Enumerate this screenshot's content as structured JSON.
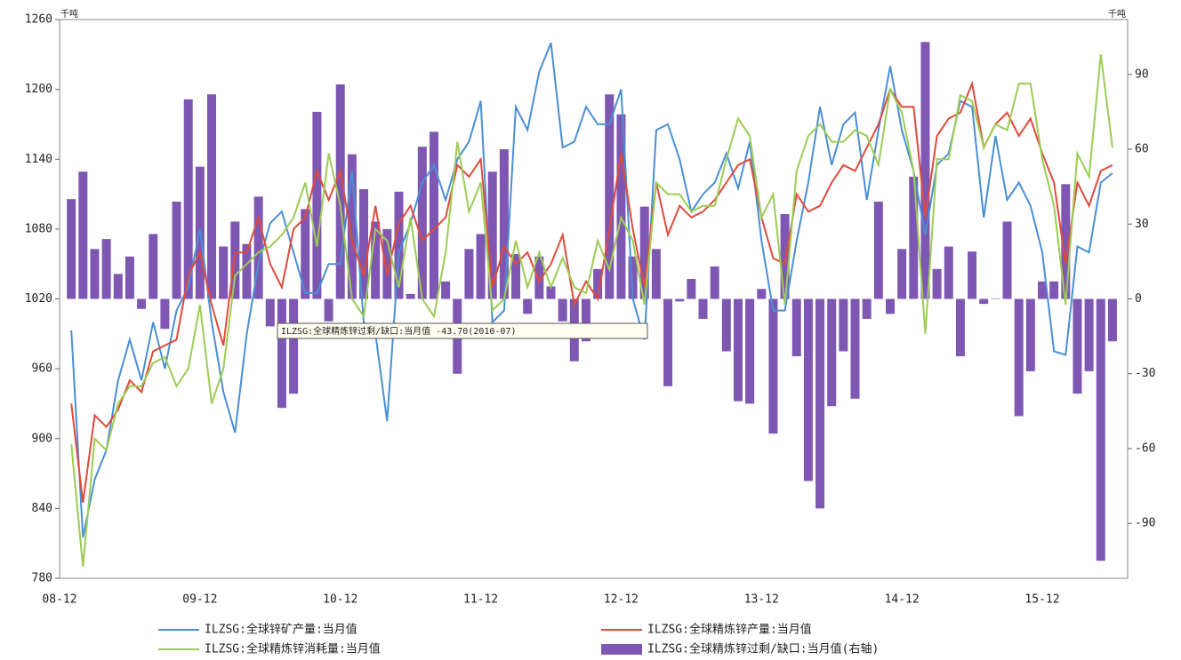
{
  "chart_data": {
    "type": "line",
    "unit_left": "千吨",
    "unit_right": "千吨",
    "annotation": "ILZSG:全球精炼锌过剩/缺口:当月值 -43.70(2010-07)",
    "categories": [
      "08-12",
      null,
      null,
      null,
      null,
      null,
      null,
      null,
      null,
      null,
      null,
      null,
      "09-12",
      null,
      null,
      null,
      null,
      null,
      null,
      null,
      null,
      null,
      null,
      null,
      "10-12",
      null,
      null,
      null,
      null,
      null,
      null,
      null,
      null,
      null,
      null,
      null,
      "11-12",
      null,
      null,
      null,
      null,
      null,
      null,
      null,
      null,
      null,
      null,
      null,
      "12-12",
      null,
      null,
      null,
      null,
      null,
      null,
      null,
      null,
      null,
      null,
      null,
      "13-12",
      null,
      null,
      null,
      null,
      null,
      null,
      null,
      null,
      null,
      null,
      null,
      "14-12",
      null,
      null,
      null,
      null,
      null,
      null,
      null,
      null,
      null,
      null,
      null,
      "15-12",
      null,
      null,
      null,
      null,
      null,
      null
    ],
    "ylim": [
      780,
      1260
    ],
    "yticks": [
      780,
      840,
      900,
      960,
      1020,
      1080,
      1140,
      1200,
      1260
    ],
    "y2lim": [
      -112,
      112
    ],
    "y2ticks": [
      -90,
      -60,
      -30,
      0,
      30,
      60,
      90
    ],
    "grid": false,
    "series": [
      {
        "name": "ILZSG:全球锌矿产量:当月值",
        "color": "#4a8fd6",
        "type": "line",
        "values": [
          null,
          993,
          815,
          865,
          890,
          950,
          985,
          950,
          1000,
          960,
          1010,
          1030,
          1080,
          1000,
          940,
          905,
          990,
          1050,
          1085,
          1095,
          1060,
          1025,
          1025,
          1050,
          1050,
          1130,
          1000,
          990,
          915,
          1060,
          1085,
          1120,
          1135,
          1105,
          1140,
          1155,
          1190,
          1000,
          1010,
          1185,
          1165,
          1215,
          1240,
          1150,
          1155,
          1185,
          1170,
          1170,
          1200,
          1020,
          985,
          1165,
          1170,
          1140,
          1095,
          1110,
          1120,
          1145,
          1115,
          1155,
          1070,
          1010,
          1010,
          1070,
          1120,
          1185,
          1135,
          1170,
          1180,
          1105,
          1165,
          1220,
          1165,
          1130,
          1075,
          1135,
          1145,
          1190,
          1185,
          1090,
          1160,
          1105,
          1120,
          1100,
          1060,
          975,
          972,
          1065,
          1060,
          1120,
          1128
        ]
      },
      {
        "name": "ILZSG:全球精炼锌产量:当月值",
        "color": "#e04a3c",
        "type": "line",
        "values": [
          null,
          930,
          845,
          920,
          910,
          925,
          950,
          940,
          975,
          980,
          985,
          1040,
          1060,
          1015,
          980,
          1060,
          1060,
          1090,
          1050,
          1030,
          1080,
          1090,
          1130,
          1105,
          1130,
          1070,
          1040,
          1100,
          1040,
          1085,
          1100,
          1070,
          1080,
          1090,
          1135,
          1125,
          1140,
          1030,
          1065,
          1050,
          1060,
          1035,
          1050,
          1075,
          1015,
          1035,
          1020,
          1080,
          1145,
          1080,
          1030,
          1120,
          1075,
          1100,
          1090,
          1095,
          1105,
          1120,
          1135,
          1140,
          1090,
          1055,
          1050,
          1110,
          1095,
          1100,
          1120,
          1135,
          1130,
          1150,
          1170,
          1200,
          1185,
          1185,
          1090,
          1160,
          1175,
          1180,
          1205,
          1150,
          1170,
          1180,
          1160,
          1175,
          1145,
          1120,
          1050,
          1120,
          1100,
          1130,
          1135
        ]
      },
      {
        "name": "ILZSG:全球精炼锌消耗量:当月值",
        "color": "#9ccc55",
        "type": "line",
        "values": [
          null,
          895,
          790,
          900,
          890,
          930,
          945,
          945,
          965,
          970,
          945,
          960,
          1015,
          930,
          960,
          1040,
          1050,
          1060,
          1065,
          1075,
          1090,
          1120,
          1065,
          1145,
          1100,
          1020,
          1005,
          1080,
          1070,
          1030,
          1090,
          1020,
          1005,
          1060,
          1155,
          1095,
          1120,
          1010,
          1020,
          1070,
          1030,
          1060,
          1030,
          1055,
          1030,
          1025,
          1070,
          1045,
          1090,
          1070,
          1015,
          1120,
          1110,
          1110,
          1095,
          1100,
          1100,
          1140,
          1175,
          1160,
          1090,
          1110,
          1015,
          1130,
          1160,
          1170,
          1155,
          1155,
          1165,
          1160,
          1135,
          1200,
          1180,
          1130,
          990,
          1140,
          1140,
          1195,
          1190,
          1150,
          1170,
          1165,
          1205,
          1205,
          1140,
          1100,
          1015,
          1145,
          1125,
          1230,
          1150
        ]
      },
      {
        "name": "ILZSG:全球精炼锌过剩/缺口:当月值(右轴)",
        "color": "#7e57b2",
        "type": "bar",
        "axis": "y2",
        "values": [
          null,
          40,
          51,
          20,
          24,
          10,
          17,
          -4,
          26,
          -12,
          39,
          80,
          53,
          82,
          21,
          31,
          22,
          41,
          -11,
          -43.7,
          -38,
          36,
          75,
          -9,
          86,
          58,
          44,
          31,
          28,
          43,
          2,
          61,
          67,
          7,
          -30,
          20,
          26,
          51,
          60,
          18,
          -6,
          17,
          5,
          -9,
          -25,
          -17,
          12,
          82,
          74,
          17,
          37,
          20,
          -35,
          -1,
          8,
          -8,
          13,
          -21,
          -41,
          -42,
          4,
          -54,
          34,
          -23,
          -73,
          -84,
          -43,
          -21,
          -40,
          -8,
          39,
          -6,
          20,
          49,
          103,
          12,
          21,
          -23,
          19,
          -2,
          0,
          31,
          -47,
          -29,
          7,
          7,
          46,
          -38,
          -29,
          -105,
          -17
        ]
      }
    ]
  }
}
